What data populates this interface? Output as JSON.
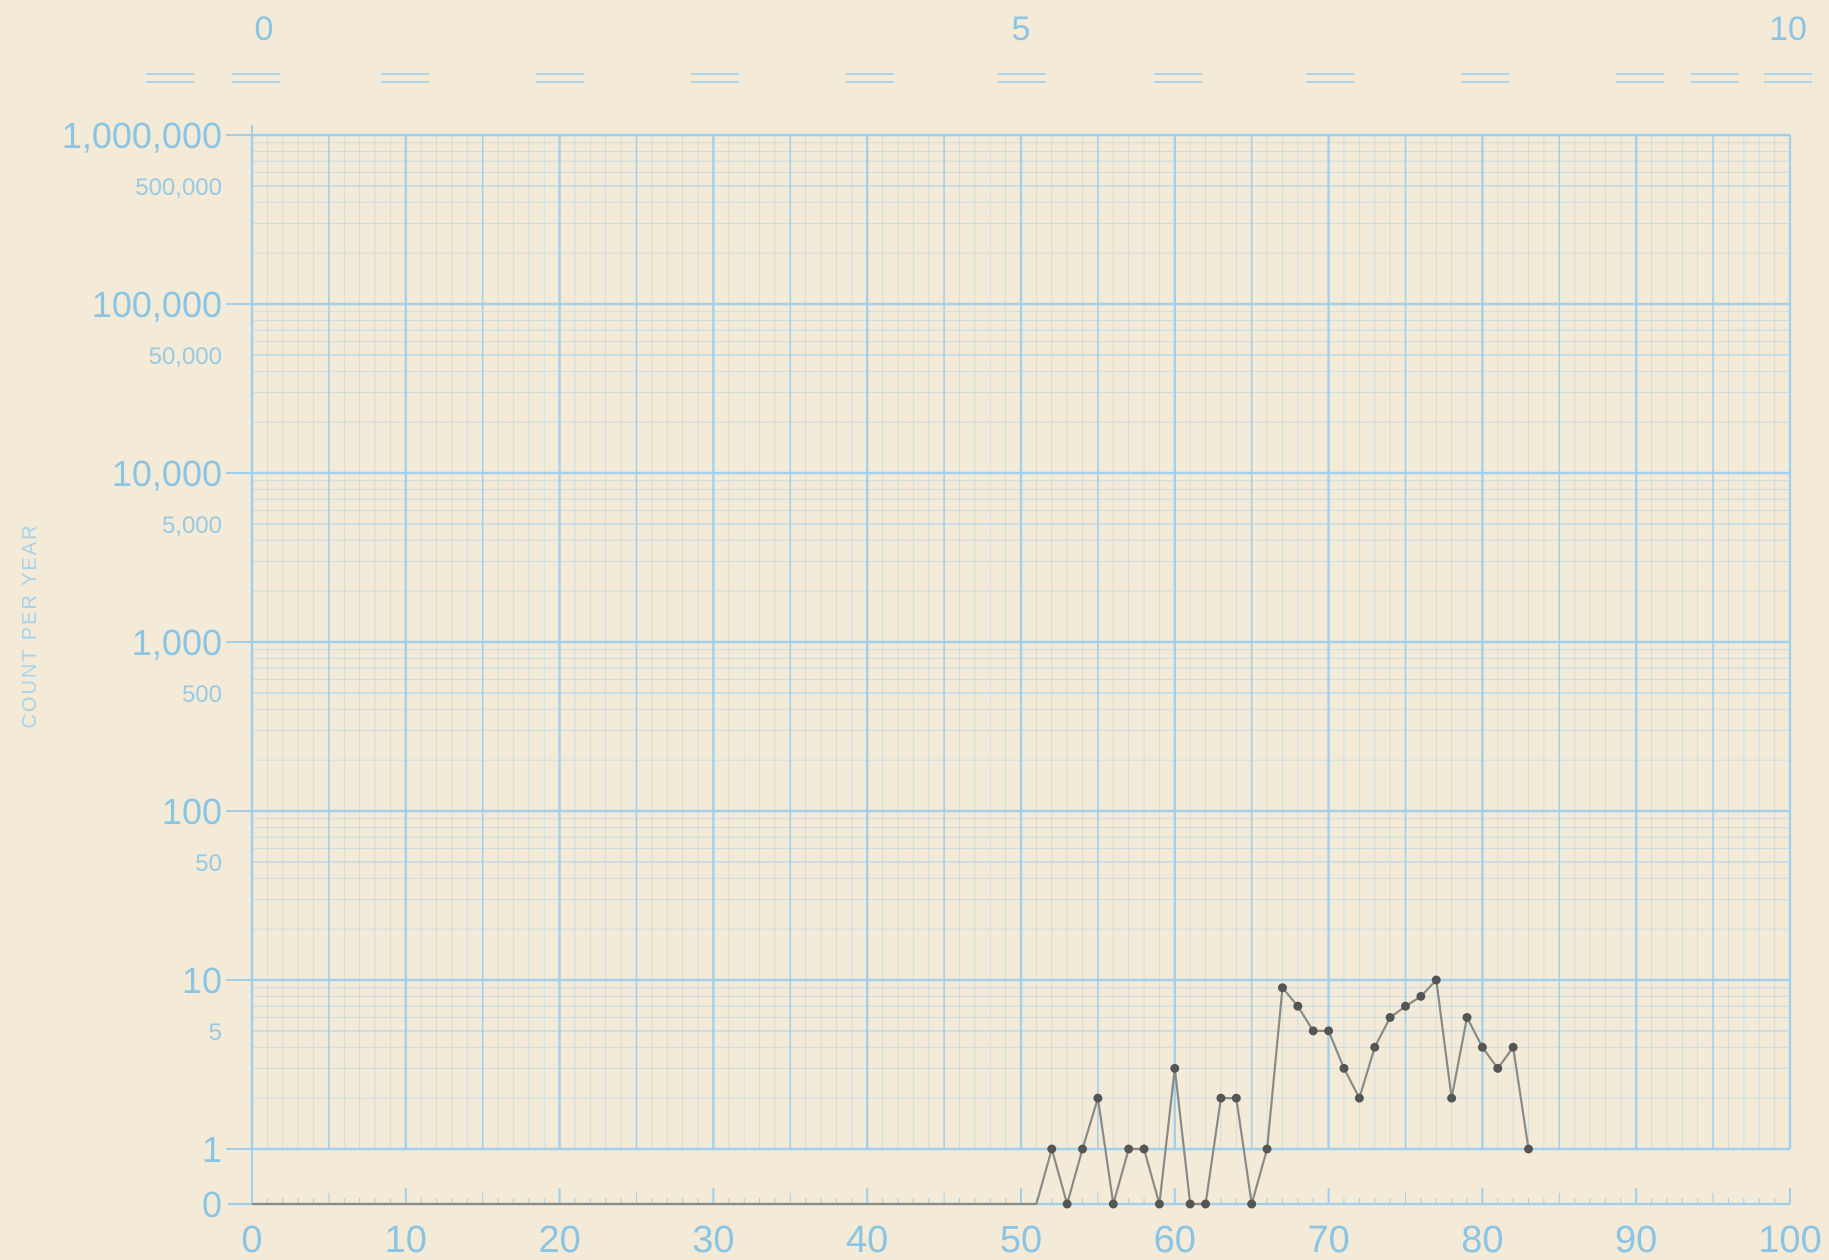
{
  "chart_data": {
    "type": "line",
    "title": "",
    "xlabel": "",
    "ylabel": "COUNT PER YEAR",
    "x_scale": "linear",
    "y_scale": "log (semi-logarithmic graph paper) with separate zero baseline",
    "xlim": [
      0,
      100
    ],
    "x_ticks": [
      "0",
      "10",
      "20",
      "30",
      "40",
      "50",
      "60",
      "70",
      "80",
      "90",
      "100"
    ],
    "top_ticks": [
      "0",
      "5",
      "10"
    ],
    "y_ticks_major": [
      "1,000,000",
      "100,000",
      "10,000",
      "1,000",
      "100",
      "10",
      "1",
      "0"
    ],
    "y_ticks_minor": [
      "500,000",
      "50,000",
      "5,000",
      "500",
      "50",
      "5"
    ],
    "grid": true,
    "colors": {
      "grid": "#9fcfeb",
      "tick_labels": "#8cc4e3",
      "line": "#8a8a86",
      "markers": "#555555",
      "paper": "#f3ebd8"
    },
    "series": [
      {
        "x": [
          0,
          1,
          2,
          3,
          4,
          5,
          6,
          7,
          8,
          9,
          10,
          11,
          12,
          13,
          14,
          15,
          16,
          17,
          18,
          19,
          20,
          21,
          22,
          23,
          24,
          25,
          26,
          27,
          28,
          29,
          30,
          31,
          32,
          33,
          34,
          35,
          36,
          37,
          38,
          39,
          40,
          41,
          42,
          43,
          44,
          45,
          46,
          47,
          48,
          49,
          50,
          51,
          52,
          53,
          54,
          55,
          56,
          57,
          58,
          59,
          60,
          61,
          62,
          63,
          64,
          65,
          66,
          67,
          68,
          69,
          70,
          71,
          72,
          73,
          74,
          75,
          76,
          77,
          78,
          79,
          80,
          81,
          82,
          83
        ],
        "y": [
          0,
          0,
          0,
          0,
          0,
          0,
          0,
          0,
          0,
          0,
          0,
          0,
          0,
          0,
          0,
          0,
          0,
          0,
          0,
          0,
          0,
          0,
          0,
          0,
          0,
          0,
          0,
          0,
          0,
          0,
          0,
          0,
          0,
          0,
          0,
          0,
          0,
          0,
          0,
          0,
          0,
          0,
          0,
          0,
          0,
          0,
          0,
          0,
          0,
          0,
          0,
          0,
          1,
          0,
          1,
          2,
          0,
          1,
          1,
          0,
          3,
          0,
          0,
          2,
          2,
          0,
          1,
          9,
          7,
          5,
          5,
          3,
          2,
          4,
          6,
          7,
          8,
          10,
          2,
          6,
          4,
          3,
          4,
          1
        ],
        "marked_from_x": 52
      }
    ]
  }
}
